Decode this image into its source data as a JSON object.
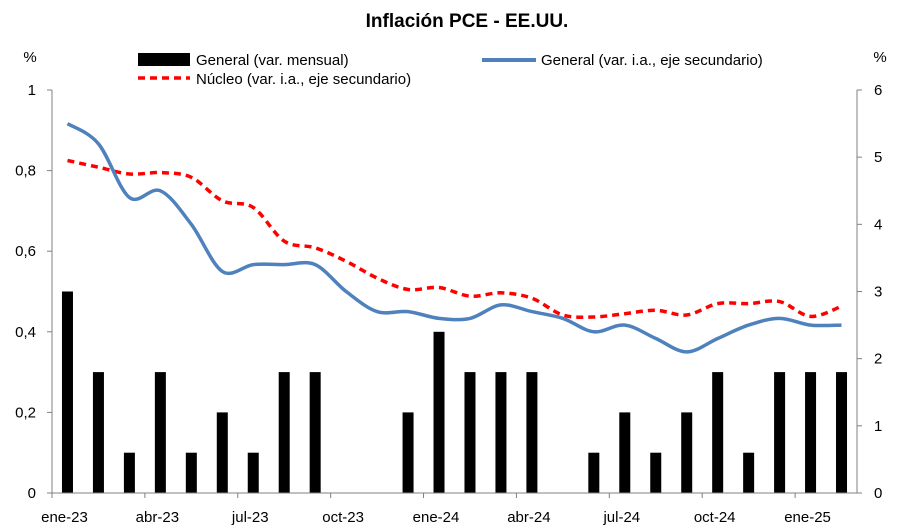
{
  "chart_data": {
    "type": "bar+line",
    "title": "Inflación PCE - EE.UU.",
    "y_left_unit": "%",
    "y_right_unit": "%",
    "ylim_left": [
      0,
      1
    ],
    "ylim_right": [
      0,
      6
    ],
    "y_left_ticks": [
      "0",
      "0,2",
      "0,4",
      "0,6",
      "0,8",
      "1"
    ],
    "y_right_ticks": [
      "0",
      "1",
      "2",
      "3",
      "4",
      "5",
      "6"
    ],
    "x_tick_labels": [
      "ene-23",
      "abr-23",
      "jul-23",
      "oct-23",
      "ene-24",
      "abr-24",
      "jul-24",
      "oct-24",
      "ene-25"
    ],
    "categories": [
      "ene-23",
      "feb-23",
      "mar-23",
      "abr-23",
      "may-23",
      "jun-23",
      "jul-23",
      "ago-23",
      "sep-23",
      "oct-23",
      "nov-23",
      "dic-23",
      "ene-24",
      "feb-24",
      "mar-24",
      "abr-24",
      "may-24",
      "jun-24",
      "jul-24",
      "ago-24",
      "sep-24",
      "oct-24",
      "nov-24",
      "dic-24",
      "ene-25",
      "feb-25"
    ],
    "series": [
      {
        "name": "General (var. mensual)",
        "kind": "bar",
        "axis": "left",
        "color": "#000000",
        "values": [
          0.5,
          0.3,
          0.1,
          0.3,
          0.1,
          0.2,
          0.1,
          0.3,
          0.3,
          0.0,
          0.0,
          0.2,
          0.4,
          0.3,
          0.3,
          0.3,
          0.0,
          0.1,
          0.2,
          0.1,
          0.2,
          0.3,
          0.1,
          0.3,
          0.3,
          0.3
        ]
      },
      {
        "name": "General (var. i.a., eje secundario)",
        "kind": "line",
        "axis": "right",
        "color": "#4f81bd",
        "values": [
          5.5,
          5.2,
          4.4,
          4.5,
          4.0,
          3.3,
          3.4,
          3.4,
          3.4,
          3.0,
          2.7,
          2.7,
          2.6,
          2.6,
          2.8,
          2.7,
          2.6,
          2.4,
          2.5,
          2.3,
          2.1,
          2.3,
          2.5,
          2.6,
          2.5,
          2.5
        ]
      },
      {
        "name": "Núcleo (var. i.a., eje secundario)",
        "kind": "line",
        "axis": "right",
        "color": "#ff0000",
        "dashed": true,
        "values": [
          4.95,
          4.85,
          4.75,
          4.77,
          4.7,
          4.35,
          4.25,
          3.75,
          3.65,
          3.45,
          3.2,
          3.03,
          3.06,
          2.93,
          2.98,
          2.9,
          2.65,
          2.62,
          2.67,
          2.72,
          2.65,
          2.82,
          2.82,
          2.85,
          2.63,
          2.78
        ]
      }
    ],
    "legend_position": "top",
    "grid": false
  }
}
